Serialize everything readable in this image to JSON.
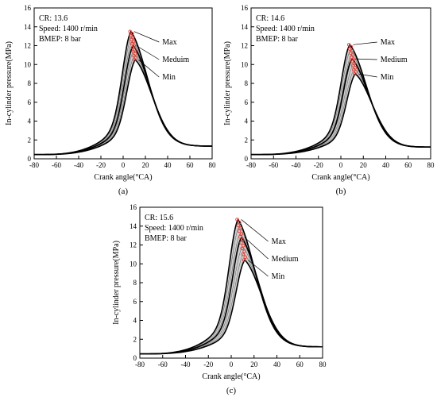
{
  "chart_data": [
    {
      "panel_label": "(a)",
      "type": "line",
      "xlabel": "Crank angle(°CA)",
      "ylabel": "In-cylinder pressure(MPa)",
      "xlim": [
        -80,
        80
      ],
      "ylim": [
        0,
        16
      ],
      "xticks": [
        -80,
        -60,
        -40,
        -20,
        0,
        20,
        40,
        60,
        80
      ],
      "yticks": [
        0,
        2,
        4,
        6,
        8,
        10,
        12,
        14,
        16
      ],
      "info": [
        "CR: 13.6",
        "Speed: 1400 r/min",
        "BMEP: 8 bar"
      ],
      "curve_labels": [
        "Max",
        "Meduim",
        "Min"
      ],
      "peaks": {
        "max": {
          "x": 7,
          "y": 13.5
        },
        "medium": {
          "x": 9,
          "y": 12.0
        },
        "min": {
          "x": 11,
          "y": 10.5
        }
      },
      "end_values": {
        "left": 0.45,
        "right": 1.35
      },
      "grid": false,
      "band_fill": "#d0d0d0",
      "marker_color": "#e8372c"
    },
    {
      "panel_label": "(b)",
      "type": "line",
      "xlabel": "Crank angle(°CA)",
      "ylabel": "In-cylinder pressure(MPa)",
      "xlim": [
        -80,
        80
      ],
      "ylim": [
        0,
        16
      ],
      "xticks": [
        -80,
        -60,
        -40,
        -20,
        0,
        20,
        40,
        60,
        80
      ],
      "yticks": [
        0,
        2,
        4,
        6,
        8,
        10,
        12,
        14,
        16
      ],
      "info": [
        "CR: 14.6",
        "Speed: 1400 r/min",
        "BMEP: 8 bar"
      ],
      "curve_labels": [
        "Max",
        "Medium",
        "Min"
      ],
      "peaks": {
        "max": {
          "x": 8,
          "y": 12.1
        },
        "medium": {
          "x": 10,
          "y": 10.6
        },
        "min": {
          "x": 13,
          "y": 9.0
        }
      },
      "end_values": {
        "left": 0.45,
        "right": 1.25
      },
      "grid": false,
      "band_fill": "#d0d0d0",
      "marker_color": "#e8372c"
    },
    {
      "panel_label": "(c)",
      "type": "line",
      "xlabel": "Crank angle(°CA)",
      "ylabel": "In-cylinder pressure(MPa)",
      "xlim": [
        -80,
        80
      ],
      "ylim": [
        0,
        16
      ],
      "xticks": [
        -80,
        -60,
        -40,
        -20,
        0,
        20,
        40,
        60,
        80
      ],
      "yticks": [
        0,
        2,
        4,
        6,
        8,
        10,
        12,
        14,
        16
      ],
      "info": [
        "CR: 15.6",
        "Speed: 1400 r/min",
        "BMEP: 8 bar"
      ],
      "curve_labels": [
        "Max",
        "Medium",
        "Min"
      ],
      "peaks": {
        "max": {
          "x": 6,
          "y": 14.7
        },
        "medium": {
          "x": 9,
          "y": 12.8
        },
        "min": {
          "x": 12,
          "y": 10.4
        }
      },
      "end_values": {
        "left": 0.45,
        "right": 1.2
      },
      "grid": false,
      "band_fill": "#d0d0d0",
      "marker_color": "#e8372c"
    }
  ]
}
